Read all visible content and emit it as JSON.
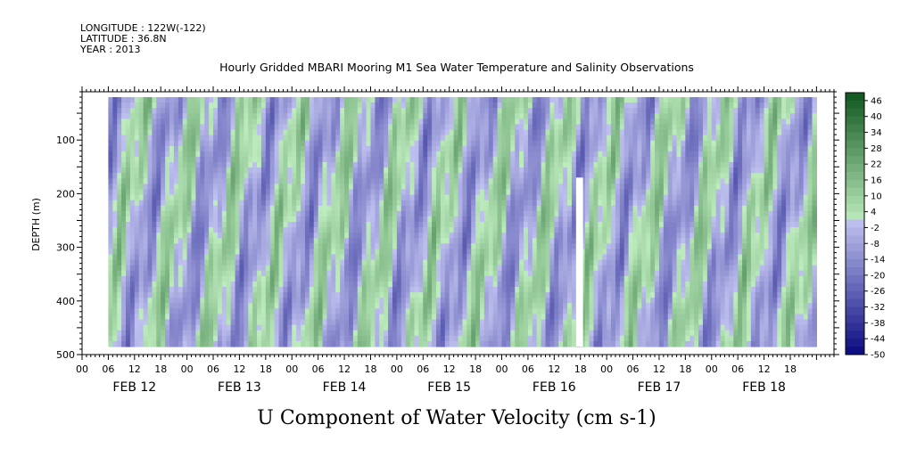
{
  "header": {
    "longitude": "LONGITUDE : 122W(-122)",
    "latitude": "LATITUDE : 36.8N",
    "year": "YEAR : 2013"
  },
  "chart_data": {
    "type": "heatmap",
    "title": "Hourly Gridded MBARI Mooring M1 Sea Water Temperature and Salinity Observations",
    "xlabel": "U Component of Water Velocity (cm s-1)",
    "ylabel": "DEPTH (m)",
    "y_ticks": [
      100,
      200,
      300,
      400,
      500
    ],
    "ylim": [
      500,
      10
    ],
    "x_hour_ticks": [
      "00",
      "06",
      "12",
      "18",
      "00",
      "06",
      "12",
      "18",
      "00",
      "06",
      "12",
      "18",
      "00",
      "06",
      "12",
      "18",
      "00",
      "06",
      "12",
      "18",
      "00",
      "06",
      "12",
      "18",
      "00",
      "06",
      "12",
      "18"
    ],
    "x_day_labels": [
      "FEB 12",
      "FEB 13",
      "FEB 14",
      "FEB 15",
      "FEB 16",
      "FEB 17",
      "FEB 18"
    ],
    "colorbar": {
      "labels": [
        "46",
        "40",
        "34",
        "28",
        "22",
        "16",
        "10",
        "4",
        "-2",
        "-8",
        "-14",
        "-20",
        "-26",
        "-32",
        "-38",
        "-44",
        "-50"
      ],
      "min": -50,
      "max": 49,
      "step": 3
    },
    "data_hours": [
      6,
      168
    ],
    "data_depth": [
      20,
      485
    ]
  }
}
